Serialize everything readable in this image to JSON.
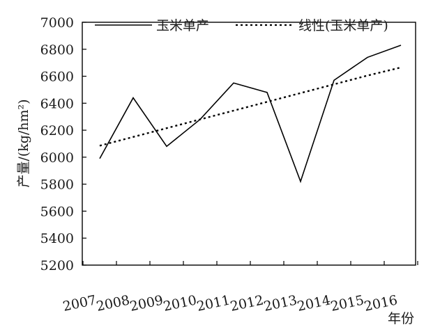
{
  "chart_data": {
    "type": "line",
    "ylabel": "产量/(kg/hm²)",
    "xlabel": "年份",
    "ylim": [
      5200,
      7000
    ],
    "ytick_step": 200,
    "yticks": [
      "5200",
      "5400",
      "5600",
      "5800",
      "6000",
      "6200",
      "6400",
      "6600",
      "6800",
      "7000"
    ],
    "categories": [
      "2007",
      "2008",
      "2009",
      "2010",
      "2011",
      "2012",
      "2013",
      "2014",
      "2015",
      "2016"
    ],
    "grid": false,
    "legend_position": "top",
    "series": [
      {
        "name": "玉米单产",
        "style": "solid",
        "values": [
          5990,
          6440,
          6080,
          6280,
          6550,
          6480,
          5820,
          6570,
          6740,
          6830
        ]
      },
      {
        "name": "线性(玉米单产)",
        "style": "dotted",
        "values": [
          6085,
          6150,
          6215,
          6280,
          6345,
          6410,
          6475,
          6540,
          6605,
          6665
        ]
      }
    ],
    "colors": {
      "line": "#000000",
      "axis": "#000000"
    }
  }
}
